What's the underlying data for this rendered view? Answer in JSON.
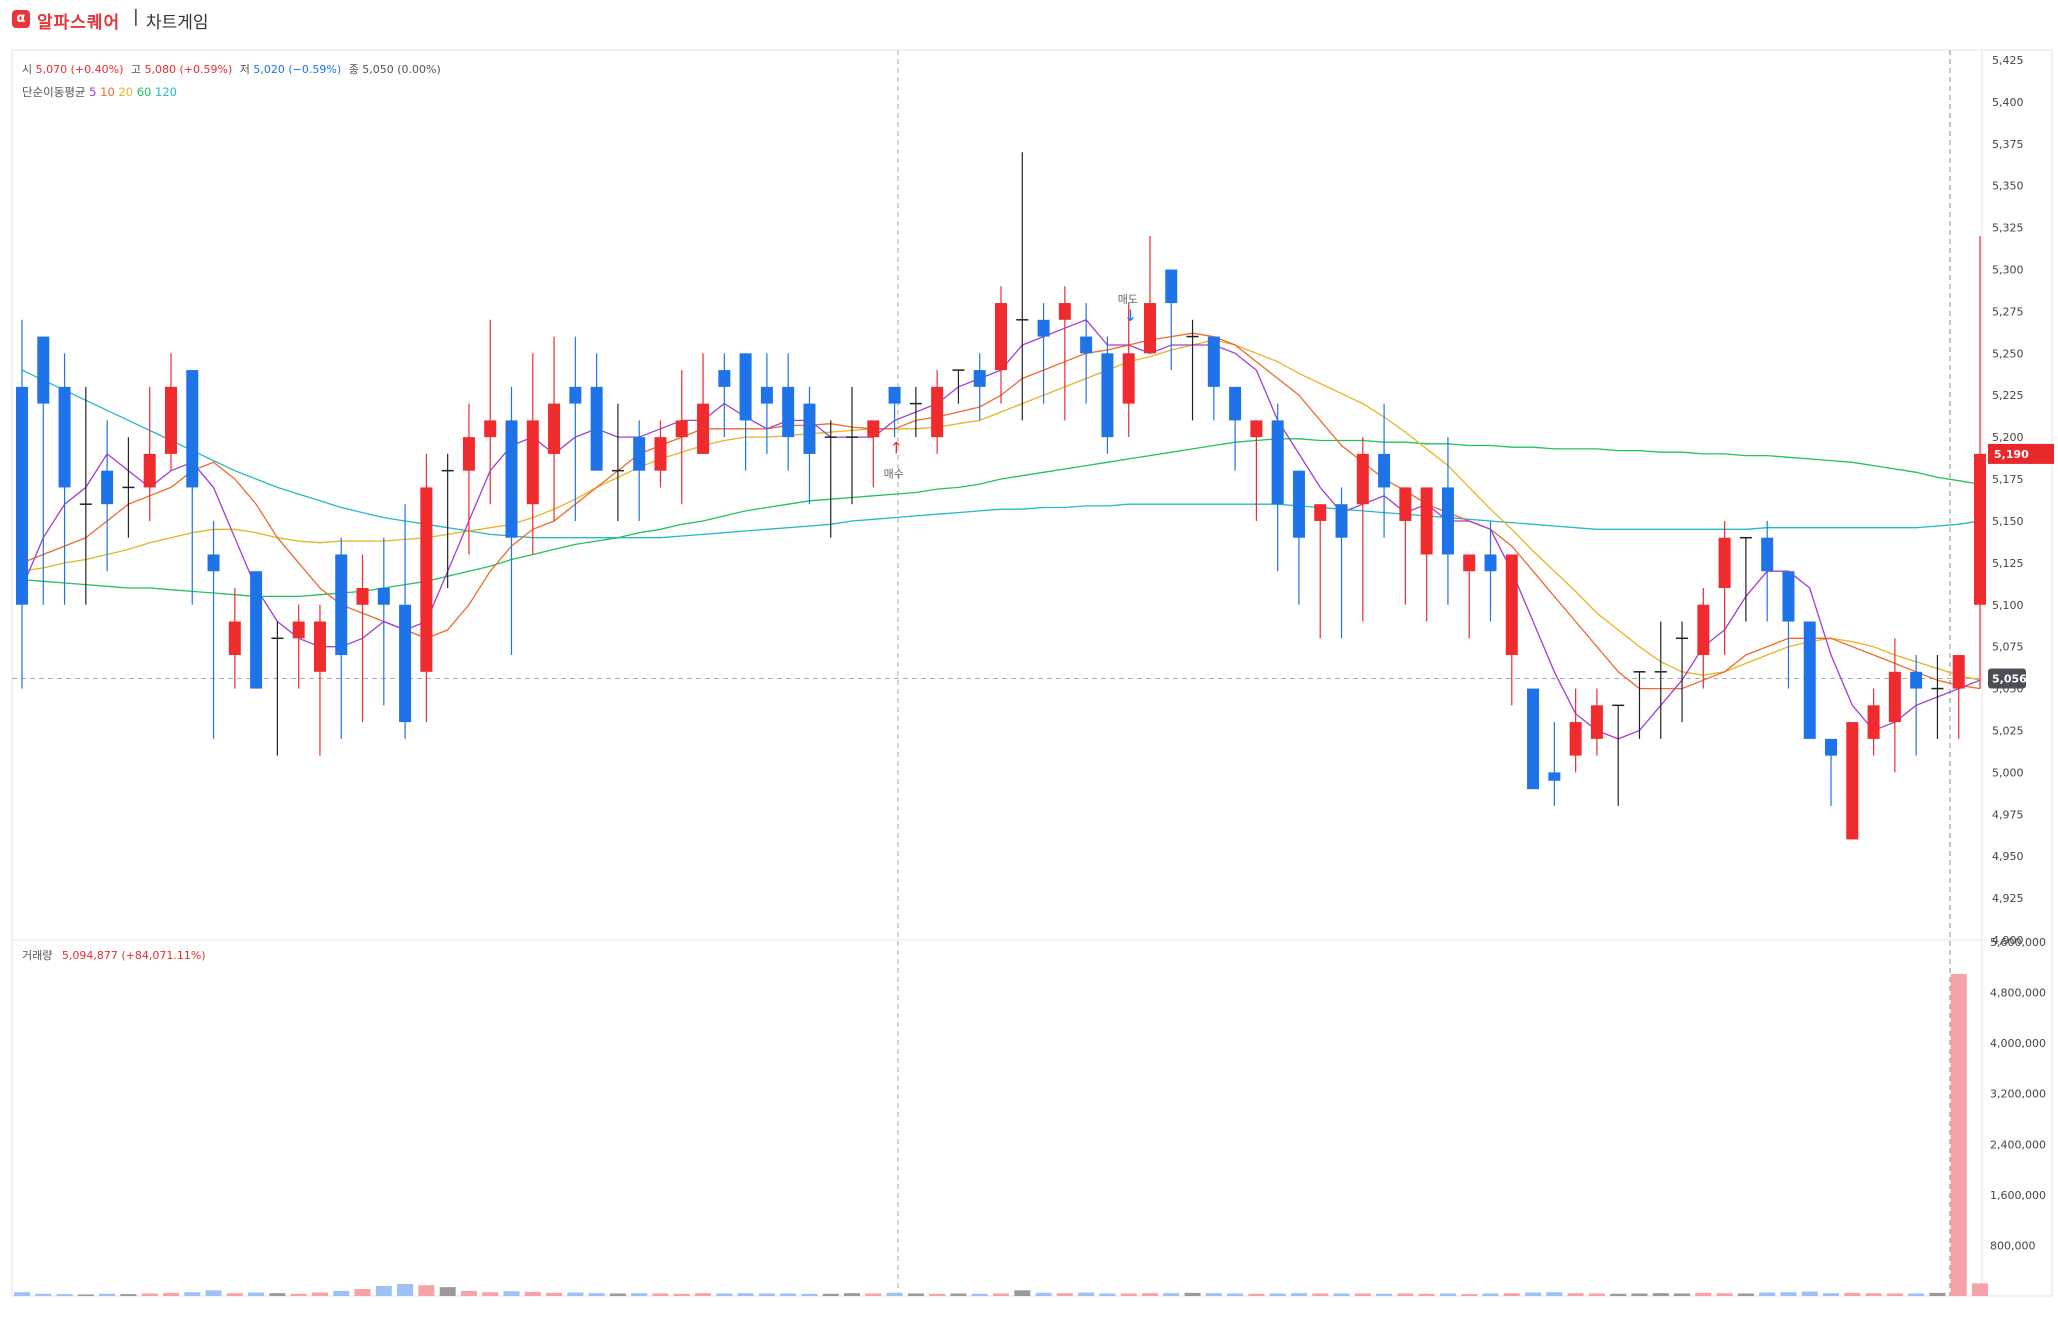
{
  "app": {
    "logo_glyph": "α",
    "brand": "알파스퀘어",
    "separator": "|",
    "title": "차트게임"
  },
  "colors": {
    "up": "#ef2b2d",
    "down": "#1e73e8",
    "flat": "#222222",
    "ma5": "#a23ed6",
    "ma10": "#ee6a29",
    "ma20": "#e6b422",
    "ma60": "#23c05f",
    "ma120": "#25b8c8",
    "vol_up": "#f5a3a6",
    "vol_down": "#9cc1f2",
    "vol_flat": "#9a9a9a",
    "last_tag": "#e8282b",
    "cur_tag": "#4a4f57"
  },
  "ohlc_info": {
    "open_label": "시",
    "open_value": "5,070",
    "open_change": "(+0.40%)",
    "high_label": "고",
    "high_value": "5,080",
    "high_change": "(+0.59%)",
    "low_label": "저",
    "low_value": "5,020",
    "low_change": "(−0.59%)",
    "close_label": "종",
    "close_value": "5,050",
    "close_change": "(0.00%)"
  },
  "ma_legend": {
    "label": "단순이동평균",
    "periods": [
      "5",
      "10",
      "20",
      "60",
      "120"
    ]
  },
  "volume_info": {
    "label": "거래량",
    "value": "5,094,877",
    "change": "(+84,071.11%)"
  },
  "signals": {
    "buy_label": "매수",
    "sell_label": "매도",
    "buy_arrow": "↑",
    "sell_arrow": "↓"
  },
  "price_tags": {
    "last": "5,190",
    "current": "5,056"
  },
  "chart_data": {
    "type": "candlestick",
    "price_axis": {
      "ylim": [
        4900,
        5425
      ],
      "ticks": [
        "5,425",
        "5,400",
        "5,375",
        "5,350",
        "5,325",
        "5,300",
        "5,275",
        "5,250",
        "5,225",
        "5,200",
        "5,175",
        "5,150",
        "5,125",
        "5,100",
        "5,075",
        "5,050",
        "5,025",
        "5,000",
        "4,975",
        "4,950",
        "4,925",
        "4,900"
      ]
    },
    "volume_axis": {
      "ylim": [
        0,
        5600000
      ],
      "ticks": [
        "5,600,000",
        "4,800,000",
        "4,000,000",
        "3,200,000",
        "2,400,000",
        "1,600,000",
        "800,000"
      ]
    },
    "candles": [
      [
        5230,
        5270,
        5050,
        5100
      ],
      [
        5260,
        5260,
        5100,
        5220
      ],
      [
        5230,
        5250,
        5100,
        5170
      ],
      [
        5160,
        5230,
        5100,
        5160
      ],
      [
        5180,
        5210,
        5120,
        5160
      ],
      [
        5170,
        5200,
        5140,
        5170
      ],
      [
        5170,
        5230,
        5150,
        5190
      ],
      [
        5190,
        5250,
        5180,
        5230
      ],
      [
        5240,
        5240,
        5100,
        5170
      ],
      [
        5130,
        5150,
        5020,
        5120
      ],
      [
        5070,
        5110,
        5050,
        5090
      ],
      [
        5120,
        5120,
        5050,
        5050
      ],
      [
        5080,
        5090,
        5010,
        5080
      ],
      [
        5080,
        5100,
        5050,
        5090
      ],
      [
        5060,
        5100,
        5010,
        5090
      ],
      [
        5130,
        5140,
        5020,
        5070
      ],
      [
        5100,
        5130,
        5030,
        5110
      ],
      [
        5110,
        5140,
        5040,
        5100
      ],
      [
        5100,
        5160,
        5020,
        5030
      ],
      [
        5060,
        5190,
        5030,
        5170
      ],
      [
        5180,
        5190,
        5110,
        5180
      ],
      [
        5180,
        5220,
        5130,
        5200
      ],
      [
        5200,
        5270,
        5160,
        5210
      ],
      [
        5210,
        5230,
        5070,
        5140
      ],
      [
        5160,
        5250,
        5130,
        5210
      ],
      [
        5190,
        5260,
        5150,
        5220
      ],
      [
        5230,
        5260,
        5150,
        5220
      ],
      [
        5230,
        5250,
        5180,
        5180
      ],
      [
        5180,
        5220,
        5150,
        5180
      ],
      [
        5200,
        5210,
        5150,
        5180
      ],
      [
        5180,
        5210,
        5170,
        5200
      ],
      [
        5200,
        5240,
        5160,
        5210
      ],
      [
        5190,
        5250,
        5190,
        5220
      ],
      [
        5240,
        5250,
        5200,
        5230
      ],
      [
        5250,
        5250,
        5180,
        5210
      ],
      [
        5230,
        5250,
        5190,
        5220
      ],
      [
        5230,
        5250,
        5180,
        5200
      ],
      [
        5220,
        5230,
        5160,
        5190
      ],
      [
        5200,
        5210,
        5140,
        5200
      ],
      [
        5200,
        5230,
        5160,
        5200
      ],
      [
        5200,
        5210,
        5170,
        5210
      ],
      [
        5230,
        5230,
        5200,
        5220
      ],
      [
        5220,
        5230,
        5200,
        5220
      ],
      [
        5200,
        5240,
        5190,
        5230
      ],
      [
        5240,
        5240,
        5220,
        5240
      ],
      [
        5240,
        5250,
        5210,
        5230
      ],
      [
        5240,
        5290,
        5220,
        5280
      ],
      [
        5270,
        5370,
        5210,
        5270
      ],
      [
        5270,
        5280,
        5220,
        5260
      ],
      [
        5270,
        5290,
        5210,
        5280
      ],
      [
        5260,
        5280,
        5220,
        5250
      ],
      [
        5250,
        5260,
        5190,
        5200
      ],
      [
        5220,
        5280,
        5200,
        5250
      ],
      [
        5250,
        5320,
        5250,
        5280
      ],
      [
        5300,
        5300,
        5240,
        5280
      ],
      [
        5260,
        5270,
        5210,
        5260
      ],
      [
        5260,
        5260,
        5210,
        5230
      ],
      [
        5230,
        5230,
        5180,
        5210
      ],
      [
        5200,
        5210,
        5150,
        5210
      ],
      [
        5210,
        5220,
        5120,
        5160
      ],
      [
        5180,
        5180,
        5100,
        5140
      ],
      [
        5150,
        5160,
        5080,
        5160
      ],
      [
        5160,
        5170,
        5080,
        5140
      ],
      [
        5160,
        5200,
        5090,
        5190
      ],
      [
        5190,
        5220,
        5140,
        5170
      ],
      [
        5150,
        5170,
        5100,
        5170
      ],
      [
        5130,
        5170,
        5090,
        5170
      ],
      [
        5170,
        5200,
        5100,
        5130
      ],
      [
        5120,
        5130,
        5080,
        5130
      ],
      [
        5130,
        5150,
        5090,
        5120
      ],
      [
        5070,
        5130,
        5040,
        5130
      ],
      [
        5050,
        5050,
        4990,
        4990
      ],
      [
        5000,
        5030,
        4980,
        4995
      ],
      [
        5010,
        5050,
        5000,
        5030
      ],
      [
        5020,
        5050,
        5010,
        5040
      ],
      [
        5040,
        5040,
        4980,
        5040
      ],
      [
        5060,
        5060,
        5020,
        5060
      ],
      [
        5060,
        5090,
        5020,
        5060
      ],
      [
        5080,
        5090,
        5030,
        5080
      ],
      [
        5070,
        5110,
        5050,
        5100
      ],
      [
        5110,
        5150,
        5070,
        5140
      ],
      [
        5140,
        5140,
        5090,
        5140
      ],
      [
        5140,
        5150,
        5090,
        5120
      ],
      [
        5120,
        5120,
        5050,
        5090
      ],
      [
        5090,
        5090,
        5020,
        5020
      ],
      [
        5020,
        5020,
        4980,
        5010
      ],
      [
        4960,
        5030,
        4960,
        5030
      ],
      [
        5020,
        5050,
        5010,
        5040
      ],
      [
        5030,
        5080,
        5000,
        5060
      ],
      [
        5060,
        5070,
        5010,
        5050
      ],
      [
        5050,
        5070,
        5020,
        5050
      ],
      [
        5050,
        5070,
        5020,
        5070
      ],
      [
        5100,
        5320,
        5050,
        5190
      ]
    ],
    "ma": {
      "ma5": [
        5110,
        5140,
        5160,
        5170,
        5190,
        5180,
        5170,
        5180,
        5185,
        5170,
        5140,
        5110,
        5090,
        5080,
        5075,
        5075,
        5080,
        5090,
        5085,
        5090,
        5120,
        5150,
        5180,
        5195,
        5200,
        5190,
        5200,
        5205,
        5200,
        5200,
        5205,
        5210,
        5210,
        5220,
        5212,
        5205,
        5210,
        5210,
        5200,
        5200,
        5200,
        5210,
        5215,
        5220,
        5230,
        5235,
        5240,
        5255,
        5260,
        5265,
        5270,
        5255,
        5255,
        5250,
        5255,
        5255,
        5255,
        5250,
        5240,
        5210,
        5190,
        5170,
        5155,
        5160,
        5165,
        5155,
        5160,
        5150,
        5150,
        5145,
        5120,
        5090,
        5060,
        5035,
        5025,
        5020,
        5025,
        5040,
        5055,
        5075,
        5085,
        5105,
        5120,
        5120,
        5110,
        5070,
        5040,
        5025,
        5030,
        5040,
        5045,
        5050,
        5055
      ],
      "ma10": [
        5125,
        5130,
        5135,
        5140,
        5150,
        5160,
        5165,
        5170,
        5180,
        5185,
        5175,
        5160,
        5140,
        5125,
        5110,
        5100,
        5095,
        5090,
        5085,
        5080,
        5085,
        5100,
        5120,
        5135,
        5145,
        5150,
        5160,
        5170,
        5180,
        5190,
        5195,
        5200,
        5205,
        5205,
        5205,
        5205,
        5207,
        5207,
        5208,
        5206,
        5205,
        5205,
        5210,
        5212,
        5215,
        5218,
        5225,
        5235,
        5240,
        5245,
        5250,
        5252,
        5255,
        5258,
        5260,
        5262,
        5260,
        5255,
        5245,
        5235,
        5225,
        5210,
        5195,
        5185,
        5175,
        5168,
        5160,
        5155,
        5150,
        5145,
        5135,
        5120,
        5105,
        5090,
        5075,
        5060,
        5050,
        5050,
        5050,
        5055,
        5060,
        5070,
        5075,
        5080,
        5080,
        5080,
        5075,
        5070,
        5065,
        5060,
        5055,
        5052,
        5050
      ],
      "ma20": [
        5120,
        5122,
        5125,
        5127,
        5130,
        5133,
        5137,
        5140,
        5143,
        5145,
        5145,
        5143,
        5140,
        5138,
        5137,
        5138,
        5138,
        5138,
        5139,
        5140,
        5142,
        5144,
        5146,
        5148,
        5152,
        5157,
        5163,
        5170,
        5176,
        5182,
        5187,
        5191,
        5195,
        5198,
        5200,
        5200,
        5201,
        5202,
        5203,
        5204,
        5205,
        5205,
        5205,
        5206,
        5208,
        5210,
        5215,
        5220,
        5225,
        5230,
        5235,
        5240,
        5245,
        5248,
        5252,
        5255,
        5258,
        5255,
        5250,
        5245,
        5238,
        5232,
        5226,
        5220,
        5212,
        5203,
        5193,
        5183,
        5170,
        5157,
        5145,
        5132,
        5120,
        5108,
        5095,
        5085,
        5075,
        5066,
        5060,
        5058,
        5060,
        5065,
        5070,
        5075,
        5078,
        5080,
        5078,
        5075,
        5070,
        5066,
        5062,
        5058,
        5055
      ],
      "ma60": [
        5115,
        5114,
        5113,
        5112,
        5111,
        5110,
        5110,
        5109,
        5108,
        5107,
        5106,
        5105,
        5105,
        5105,
        5106,
        5107,
        5108,
        5110,
        5112,
        5114,
        5117,
        5120,
        5123,
        5127,
        5130,
        5133,
        5136,
        5138,
        5140,
        5143,
        5145,
        5148,
        5150,
        5153,
        5156,
        5158,
        5160,
        5162,
        5163,
        5164,
        5165,
        5166,
        5167,
        5169,
        5170,
        5172,
        5175,
        5177,
        5179,
        5181,
        5183,
        5185,
        5187,
        5189,
        5191,
        5193,
        5195,
        5197,
        5198,
        5199,
        5199,
        5198,
        5198,
        5198,
        5197,
        5197,
        5196,
        5196,
        5195,
        5195,
        5194,
        5194,
        5193,
        5193,
        5193,
        5192,
        5192,
        5191,
        5191,
        5190,
        5190,
        5189,
        5189,
        5188,
        5187,
        5186,
        5185,
        5183,
        5181,
        5179,
        5176,
        5174,
        5172
      ],
      "ma120": [
        5240,
        5234,
        5228,
        5222,
        5216,
        5210,
        5204,
        5198,
        5192,
        5186,
        5180,
        5175,
        5170,
        5166,
        5162,
        5158,
        5155,
        5152,
        5150,
        5148,
        5146,
        5144,
        5142,
        5141,
        5140,
        5140,
        5140,
        5140,
        5140,
        5140,
        5140,
        5141,
        5142,
        5143,
        5144,
        5145,
        5146,
        5147,
        5148,
        5150,
        5151,
        5152,
        5153,
        5154,
        5155,
        5156,
        5157,
        5157,
        5158,
        5158,
        5159,
        5159,
        5160,
        5160,
        5160,
        5160,
        5160,
        5160,
        5160,
        5160,
        5159,
        5158,
        5157,
        5156,
        5155,
        5154,
        5153,
        5152,
        5151,
        5150,
        5149,
        5148,
        5147,
        5146,
        5145,
        5145,
        5145,
        5145,
        5145,
        5145,
        5145,
        5145,
        5146,
        5146,
        5146,
        5146,
        5146,
        5146,
        5146,
        5146,
        5147,
        5148,
        5150
      ]
    },
    "volume": [
      60000,
      35000,
      30000,
      25000,
      35000,
      30000,
      40000,
      50000,
      60000,
      90000,
      45000,
      55000,
      45000,
      35000,
      55000,
      80000,
      110000,
      160000,
      190000,
      170000,
      140000,
      80000,
      60000,
      75000,
      65000,
      50000,
      55000,
      45000,
      40000,
      45000,
      40000,
      35000,
      45000,
      40000,
      45000,
      40000,
      40000,
      35000,
      35000,
      45000,
      40000,
      50000,
      40000,
      35000,
      40000,
      35000,
      40000,
      90000,
      50000,
      45000,
      55000,
      40000,
      40000,
      45000,
      45000,
      50000,
      45000,
      40000,
      35000,
      40000,
      45000,
      40000,
      40000,
      40000,
      35000,
      40000,
      35000,
      40000,
      30000,
      40000,
      45000,
      55000,
      60000,
      45000,
      40000,
      35000,
      40000,
      45000,
      40000,
      50000,
      45000,
      40000,
      55000,
      60000,
      70000,
      45000,
      50000,
      45000,
      40000,
      40000,
      50000,
      5094877,
      200000
    ],
    "signals": [
      {
        "type": "buy",
        "index": 41,
        "price": 5195
      },
      {
        "type": "sell",
        "index": 52,
        "price": 5268
      }
    ]
  }
}
